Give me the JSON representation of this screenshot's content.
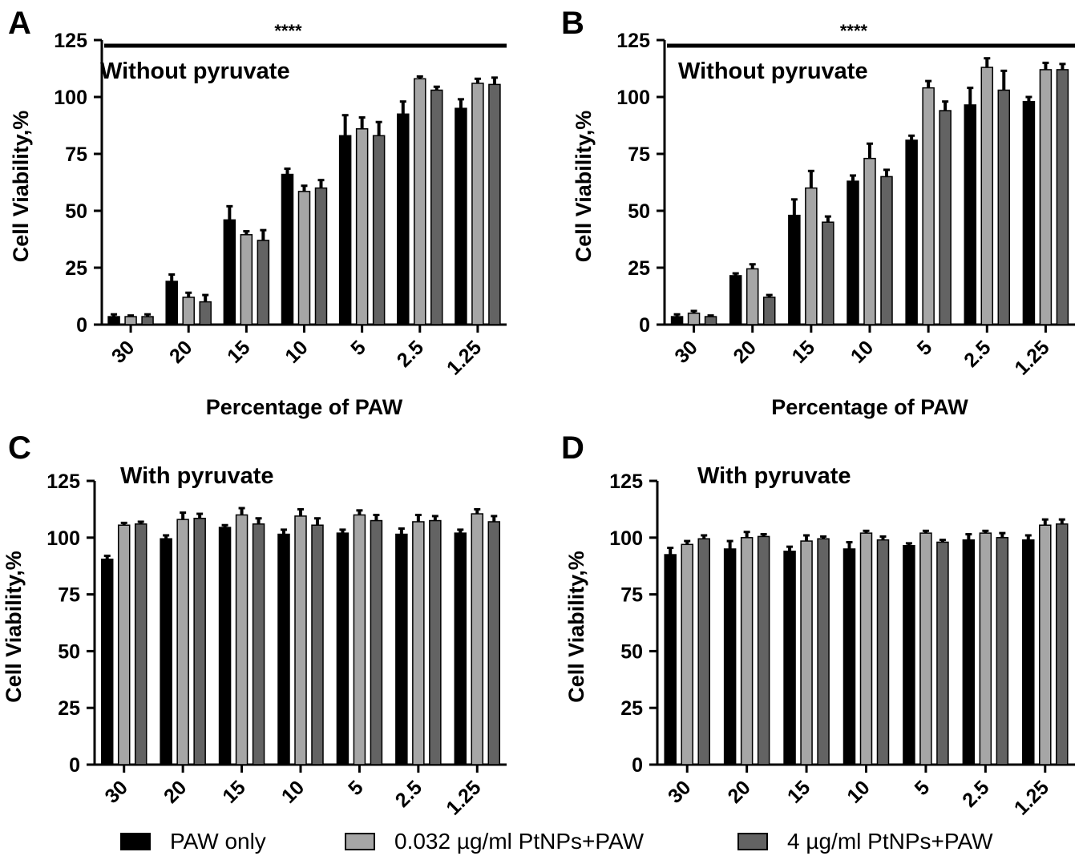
{
  "colors": {
    "paw_only": "#000000",
    "ptnp_low": "#a6a6a6",
    "ptnp_high": "#636363",
    "axis": "#000000"
  },
  "chart_data": [
    {
      "panel_letter": "A",
      "type": "bar",
      "annotation": "Without pyruvate",
      "significance": "****",
      "ylabel": "Cell Viability,%",
      "xlabel": "Percentage of PAW",
      "ylim": [
        0,
        125
      ],
      "yticks": [
        "0",
        "25",
        "50",
        "75",
        "100",
        "125"
      ],
      "categories": [
        "30",
        "20",
        "15",
        "10",
        "5",
        "2.5",
        "1.25"
      ],
      "series": [
        {
          "name": "PAW only",
          "values": [
            3.5,
            19,
            46,
            66,
            83,
            92.5,
            95
          ],
          "errors": [
            1,
            3,
            6,
            2.5,
            9,
            5.5,
            4
          ]
        },
        {
          "name": "0.032 µg/ml PtNPs+PAW",
          "values": [
            3.5,
            12,
            39.5,
            58.5,
            86,
            108,
            106
          ],
          "errors": [
            0.5,
            2,
            1.5,
            2.5,
            5,
            1,
            2
          ]
        },
        {
          "name": "4 µg/ml PtNPs+PAW",
          "values": [
            3.5,
            10,
            37,
            60,
            83,
            103,
            105.5
          ],
          "errors": [
            1,
            3,
            4.5,
            3.5,
            6,
            1.5,
            3
          ]
        }
      ]
    },
    {
      "panel_letter": "B",
      "type": "bar",
      "annotation": "Without pyruvate",
      "significance": "****",
      "ylabel": "Cell Viability,%",
      "xlabel": "Percentage of PAW",
      "ylim": [
        0,
        125
      ],
      "yticks": [
        "0",
        "25",
        "50",
        "75",
        "100",
        "125"
      ],
      "categories": [
        "30",
        "20",
        "15",
        "10",
        "5",
        "2.5",
        "1.25"
      ],
      "series": [
        {
          "name": "PAW only",
          "values": [
            3.5,
            21.5,
            48,
            63,
            81,
            96.5,
            98
          ],
          "errors": [
            1,
            1,
            7,
            2.5,
            2,
            7.5,
            2
          ]
        },
        {
          "name": "0.032 µg/ml PtNPs+PAW",
          "values": [
            5,
            24.5,
            60,
            73,
            104,
            113,
            112
          ],
          "errors": [
            1,
            2,
            7.5,
            6.5,
            3,
            4,
            3
          ]
        },
        {
          "name": "4 µg/ml PtNPs+PAW",
          "values": [
            3.5,
            12,
            45,
            65,
            94,
            103,
            112
          ],
          "errors": [
            0.5,
            1,
            2.5,
            3,
            4,
            8.5,
            2.5
          ]
        }
      ]
    },
    {
      "panel_letter": "C",
      "type": "bar",
      "annotation": "With pyruvate",
      "significance": "",
      "ylabel": "Cell Viability,%",
      "xlabel": "",
      "ylim": [
        0,
        125
      ],
      "yticks": [
        "0",
        "25",
        "50",
        "75",
        "100",
        "125"
      ],
      "categories": [
        "30",
        "20",
        "15",
        "10",
        "5",
        "2.5",
        "1.25"
      ],
      "series": [
        {
          "name": "PAW only",
          "values": [
            90.5,
            99.5,
            104.5,
            101.5,
            102,
            101.5,
            102
          ],
          "errors": [
            1.5,
            1.5,
            1,
            2,
            1.5,
            2.5,
            1.5
          ]
        },
        {
          "name": "0.032 µg/ml PtNPs+PAW",
          "values": [
            105.5,
            108,
            110,
            109.5,
            110,
            107,
            110.5
          ],
          "errors": [
            1,
            3,
            3,
            3,
            2,
            3,
            2
          ]
        },
        {
          "name": "4 µg/ml PtNPs+PAW",
          "values": [
            106,
            108.5,
            106,
            105.5,
            107.5,
            107.5,
            107
          ],
          "errors": [
            1,
            2,
            2.5,
            3,
            2.5,
            2,
            2.5
          ]
        }
      ]
    },
    {
      "panel_letter": "D",
      "type": "bar",
      "annotation": "With pyruvate",
      "significance": "",
      "ylabel": "Cell Viability,%",
      "xlabel": "",
      "ylim": [
        0,
        125
      ],
      "yticks": [
        "0",
        "25",
        "50",
        "75",
        "100",
        "125"
      ],
      "categories": [
        "30",
        "20",
        "15",
        "10",
        "5",
        "2.5",
        "1.25"
      ],
      "series": [
        {
          "name": "PAW only",
          "values": [
            92.5,
            95,
            94,
            95,
            96.5,
            99,
            99
          ],
          "errors": [
            3,
            3.5,
            2,
            3,
            1,
            2.5,
            2
          ]
        },
        {
          "name": "0.032 µg/ml PtNPs+PAW",
          "values": [
            97,
            100,
            98.5,
            102,
            102,
            102,
            105.5
          ],
          "errors": [
            1.5,
            2.5,
            2.5,
            1,
            1,
            1,
            2.5
          ]
        },
        {
          "name": "4 µg/ml PtNPs+PAW",
          "values": [
            99.5,
            100.5,
            99.5,
            99,
            98,
            100,
            106
          ],
          "errors": [
            1.5,
            1,
            1,
            1.5,
            1,
            2,
            2
          ]
        }
      ]
    }
  ],
  "legend": {
    "items": [
      {
        "label": "PAW only"
      },
      {
        "label": "0.032 µg/ml PtNPs+PAW"
      },
      {
        "label": "4 µg/ml PtNPs+PAW"
      }
    ]
  }
}
